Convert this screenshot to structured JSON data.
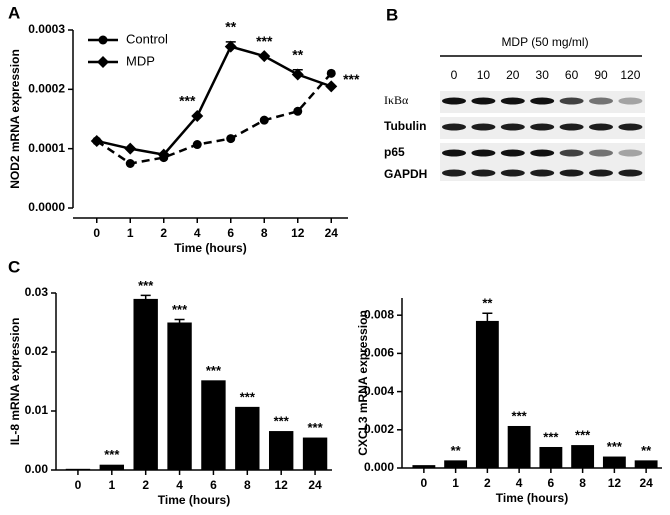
{
  "panel_labels": [
    "A",
    "B",
    "C"
  ],
  "blot": {
    "title": "MDP (50 mg/ml)",
    "lanes": [
      "0",
      "10",
      "20",
      "30",
      "60",
      "90",
      "120"
    ],
    "rows": [
      "IκBα",
      "Tubulin",
      "p65",
      "GAPDH"
    ]
  },
  "chart_data": [
    {
      "type": "line",
      "x_label": "Time (hours)",
      "y_label": "NOD2 mRNA expression",
      "categories": [
        "0",
        "1",
        "2",
        "4",
        "6",
        "8",
        "12",
        "24"
      ],
      "ylim": [
        0,
        0.0003
      ],
      "yticks": [
        {
          "value": 0,
          "label": "0.0000"
        },
        {
          "value": 0.0001,
          "label": "0.0001"
        },
        {
          "value": 0.0002,
          "label": "0.0002"
        },
        {
          "value": 0.0003,
          "label": "0.0003"
        }
      ],
      "legend": "upper left",
      "series": [
        {
          "name": "Control",
          "color": "#000000",
          "marker": "circle",
          "dashed": true,
          "values": [
            0.000113,
            7.5e-05,
            8.5e-05,
            0.000107,
            0.000117,
            0.000148,
            0.000163,
            0.000227
          ]
        },
        {
          "name": "MDP",
          "color": "#000000",
          "marker": "diamond",
          "dashed": false,
          "values": [
            0.000113,
            0.0001,
            9e-05,
            0.000155,
            0.000272,
            0.000256,
            0.000225,
            0.000205
          ],
          "errors": [
            null,
            null,
            null,
            null,
            8e-06,
            null,
            8e-06,
            null
          ],
          "annotations": [
            null,
            null,
            null,
            "***",
            "**",
            "***",
            "**",
            "***"
          ]
        }
      ]
    },
    {
      "type": "bar",
      "x_label": "Time (hours)",
      "y_label": "IL-8 mRNA expression",
      "color": "#000000",
      "categories": [
        "0",
        "1",
        "2",
        "4",
        "6",
        "8",
        "12",
        "24"
      ],
      "values": [
        0.0002,
        0.0009,
        0.029,
        0.025,
        0.0152,
        0.0107,
        0.0066,
        0.0055
      ],
      "errors": [
        null,
        null,
        0.0006,
        0.0005,
        null,
        null,
        null,
        null
      ],
      "annotations": [
        null,
        "***",
        "***",
        "***",
        "***",
        "***",
        "***",
        "***"
      ],
      "ylim": [
        0,
        0.03
      ],
      "yticks": [
        {
          "value": 0,
          "label": "0.00"
        },
        {
          "value": 0.01,
          "label": "0.01"
        },
        {
          "value": 0.02,
          "label": "0.02"
        },
        {
          "value": 0.03,
          "label": "0.03"
        }
      ]
    },
    {
      "type": "bar",
      "x_label": "Time (hours)",
      "y_label": "CXCL3 mRNA expression",
      "color": "#000000",
      "categories": [
        "0",
        "1",
        "2",
        "4",
        "6",
        "8",
        "12",
        "24"
      ],
      "values": [
        0.00015,
        0.0004,
        0.0077,
        0.0022,
        0.0011,
        0.0012,
        0.0006,
        0.0004
      ],
      "errors": [
        null,
        null,
        0.0004,
        null,
        null,
        null,
        null,
        null
      ],
      "annotations": [
        null,
        "**",
        "**",
        "***",
        "***",
        "***",
        "***",
        "**"
      ],
      "ylim": [
        0,
        0.0089
      ],
      "yticks": [
        {
          "value": 0,
          "label": "0.000"
        },
        {
          "value": 0.002,
          "label": "0.002"
        },
        {
          "value": 0.004,
          "label": "0.004"
        },
        {
          "value": 0.006,
          "label": "0.006"
        },
        {
          "value": 0.008,
          "label": "0.008"
        }
      ]
    }
  ]
}
